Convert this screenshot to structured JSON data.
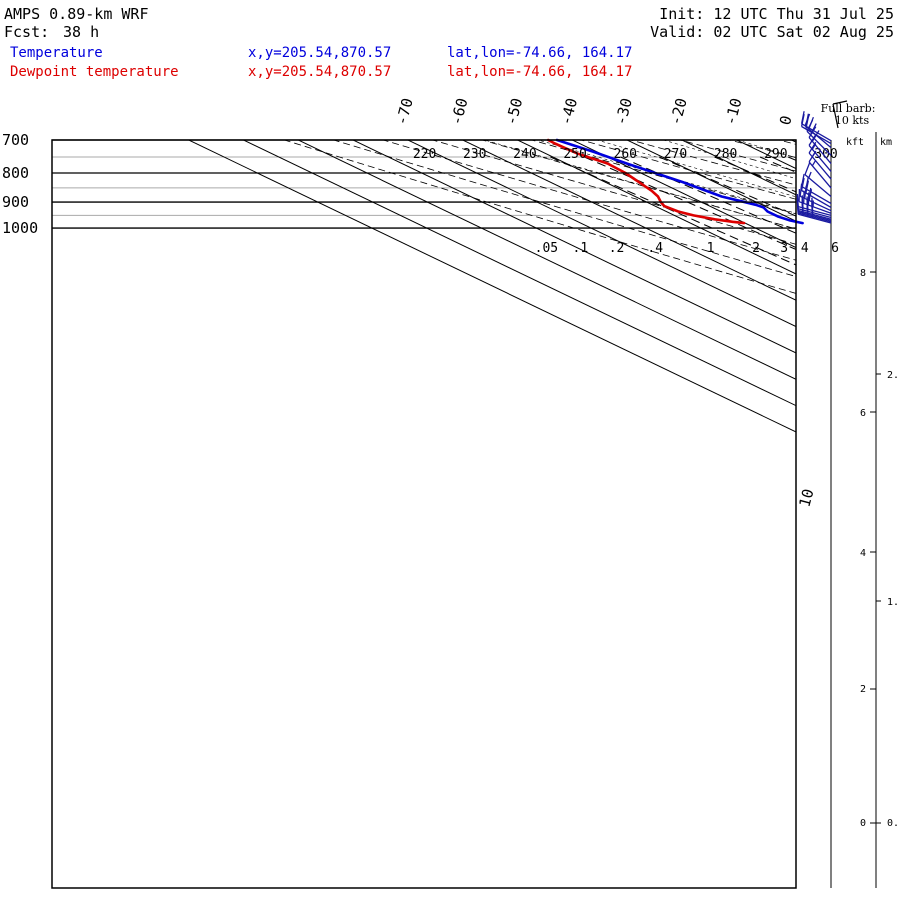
{
  "header": {
    "model": "AMPS 0.89-km WRF",
    "fcst_label": "Fcst:",
    "fcst_value": "38 h",
    "init": "Init: 12 UTC Thu 31 Jul 25",
    "valid": "Valid: 02 UTC Sat 02 Aug 25",
    "point_xy": "x,y=205.54,870.57",
    "point_latlon": "lat,lon=-74.66, 164.17"
  },
  "barb_key": {
    "line1": "Full barb:",
    "line2": "10 kts"
  },
  "height_axis": {
    "kft_label": "kft",
    "km_label": "km",
    "kft_ticks": [
      "8",
      "6",
      "4",
      "2",
      "0"
    ],
    "km_ticks": [
      "2.",
      "1.",
      "0."
    ]
  },
  "colors": {
    "temperature": "#0000dd",
    "dewpoint": "#dd0000",
    "barb": "#1a1aa0"
  },
  "chart_data": {
    "type": "line",
    "chart_kind": "skew-T log-p diagram",
    "title": "",
    "y_axis": {
      "quantity": "pressure (hPa)",
      "scale": "log",
      "range": [
        1050,
        700
      ],
      "ticks": [
        "700",
        "800",
        "900",
        "1000"
      ]
    },
    "temperature_ticks": [
      "-70",
      "-60",
      "-50",
      "-40",
      "-30",
      "-20",
      "-10",
      "0"
    ],
    "isotherm_label_extra": "10",
    "dry_adiabat_labels": [
      "220",
      "230",
      "240",
      "250",
      "260",
      "270",
      "280",
      "290",
      "300"
    ],
    "mixing_ratio_labels": [
      ".05",
      ".1",
      ".2",
      ".4",
      "1",
      "2",
      "3",
      "4",
      "6"
    ],
    "series": [
      {
        "name": "Temperature",
        "x_label": "x,y=205.54,870.57",
        "location_label": "lat,lon=-74.66, 164.17",
        "unit": "degC",
        "points": [
          [
            980,
            -29.5
          ],
          [
            970,
            -30.8
          ],
          [
            955,
            -31.5
          ],
          [
            935,
            -31.5
          ],
          [
            920,
            -30.7
          ],
          [
            910,
            -31.1
          ],
          [
            895,
            -32.6
          ],
          [
            880,
            -34.2
          ],
          [
            855,
            -35.0
          ],
          [
            830,
            -35.8
          ],
          [
            800,
            -37.4
          ],
          [
            770,
            -39.0
          ],
          [
            735,
            -40.6
          ],
          [
            700,
            -42.8
          ]
        ]
      },
      {
        "name": "Dewpoint temperature",
        "x_label": "x,y=205.54,870.57",
        "location_label": "lat,lon=-74.66, 164.17",
        "unit": "degC",
        "points": [
          [
            980,
            -40.2
          ],
          [
            975,
            -41.8
          ],
          [
            965,
            -44.1
          ],
          [
            950,
            -46.5
          ],
          [
            935,
            -47.8
          ],
          [
            915,
            -48.3
          ],
          [
            900,
            -47.4
          ],
          [
            880,
            -45.8
          ],
          [
            860,
            -44.8
          ],
          [
            830,
            -43.8
          ],
          [
            800,
            -42.8
          ],
          [
            770,
            -42.5
          ],
          [
            740,
            -44.2
          ],
          [
            710,
            -44.5
          ],
          [
            700,
            -44.4
          ]
        ]
      }
    ],
    "wind_profile": {
      "units": "kts",
      "barbs": [
        {
          "p": 980,
          "speed": 40,
          "dir": 285
        },
        {
          "p": 975,
          "speed": 40,
          "dir": 285
        },
        {
          "p": 970,
          "speed": 40,
          "dir": 285
        },
        {
          "p": 965,
          "speed": 40,
          "dir": 285
        },
        {
          "p": 958,
          "speed": 40,
          "dir": 285
        },
        {
          "p": 950,
          "speed": 40,
          "dir": 285
        },
        {
          "p": 942,
          "speed": 35,
          "dir": 290
        },
        {
          "p": 932,
          "speed": 30,
          "dir": 295
        },
        {
          "p": 920,
          "speed": 25,
          "dir": 300
        },
        {
          "p": 905,
          "speed": 20,
          "dir": 300
        },
        {
          "p": 880,
          "speed": 15,
          "dir": 310
        },
        {
          "p": 850,
          "speed": 15,
          "dir": 320
        },
        {
          "p": 820,
          "speed": 15,
          "dir": 320
        },
        {
          "p": 795,
          "speed": 15,
          "dir": 320
        },
        {
          "p": 770,
          "speed": 20,
          "dir": 320
        },
        {
          "p": 745,
          "speed": 20,
          "dir": 315
        },
        {
          "p": 722,
          "speed": 20,
          "dir": 310
        },
        {
          "p": 710,
          "speed": 20,
          "dir": 300
        },
        {
          "p": 702,
          "speed": 20,
          "dir": 300
        }
      ]
    }
  }
}
